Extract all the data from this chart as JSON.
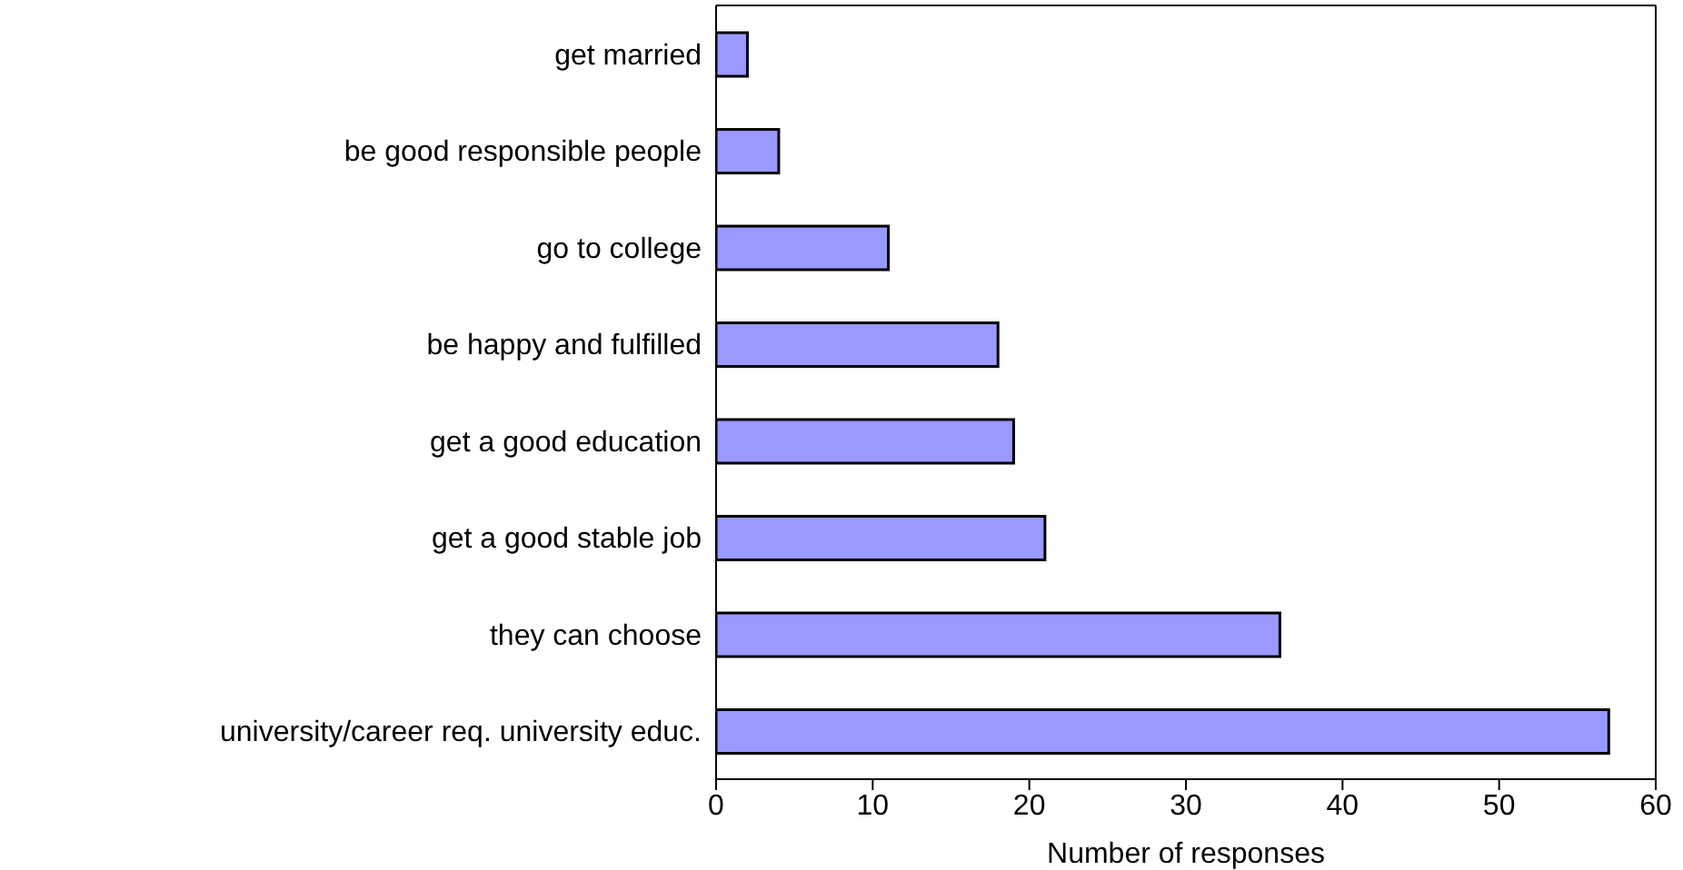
{
  "chart_data": {
    "type": "bar",
    "orientation": "horizontal",
    "xlabel": "Number of responses",
    "categories": [
      "get married",
      "be good responsible people",
      "go to college",
      "be happy and fulfilled",
      "get a good education",
      "get a good stable job",
      "they can choose",
      "university/career req. university educ."
    ],
    "values": [
      2,
      4,
      11,
      18,
      19,
      21,
      36,
      57
    ],
    "color": "#9999ff",
    "xlim": [
      0,
      60
    ],
    "xticks": [
      0,
      10,
      20,
      30,
      40,
      50,
      60
    ],
    "grid": false
  }
}
